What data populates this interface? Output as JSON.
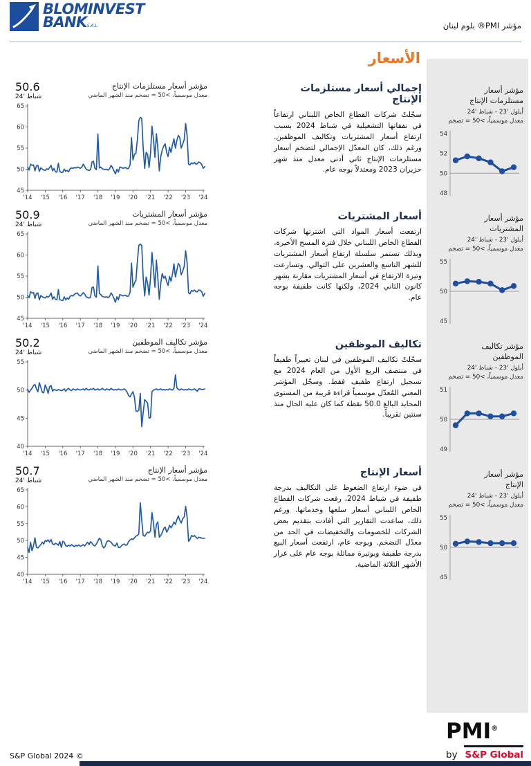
{
  "colors": {
    "accent_orange": "#E87722",
    "brand_blue": "#1C4E9D",
    "chart_line": "#215BA6",
    "spark_line": "#1F4E9C",
    "panel_bg": "#E9E9E9",
    "sp_red": "#E00A2B",
    "footer_bar": "#1B2A4A"
  },
  "header": {
    "brand": {
      "line1": "BLOMINVEST",
      "line2": "BANK",
      "suffix": "S.A.L"
    },
    "report_title": "مؤشر PMI® بلوم لبنان",
    "section_title": "الأسعار"
  },
  "footer": {
    "left": "S&P Global 2024 ©",
    "pmi": "PMI",
    "pmi_reg": "®",
    "by": "by",
    "sp_global": "S&P Global"
  },
  "sections": [
    {
      "heading": "إجمالي أسعار مستلزمات الإنتاج",
      "body": "سجّلتْ شركات القطاع الخاص اللبناني ارتفاعاً في نفقاتها التشغيلية في شباط 2024 بسبب ارتفاع أسعار المشتريات وتكاليف الموظفين. ورغم ذلك، كان المعدّل الإجمالي لتضخم أسعار مستلزمات الإنتاج ثاني أدنى معدل منذ شهر حزيران 2023 ومعتدلاً بوجه عام.",
      "chart": {
        "title": "مؤشر أسعار مستلزمات الإنتاج",
        "subtitle": "معدل موسمياً، >50 = تضخم منذ الشهر الماضي",
        "value": "50.6",
        "value_label": "شباط '24"
      },
      "panel": {
        "title": "مؤشر أسعار\nمستلزمات الإنتاج",
        "range": "أيلول '23 - شباط '24",
        "note": "معدل موسمياً، >50 = تضخم"
      }
    },
    {
      "heading": "أسعار المشتريات",
      "body": "ارتفعت أسعار المواد التي اشترتها شركات القطاع الخاص اللبناني خلال فترة المسح الأخيرة، وبذلك تستمر سلسلة ارتفاع أسعار المشتريات للشهر التاسع والعشرين على التوالي. وتسارعت وتيرة الارتفاع في أسعار المشتريات مقارنة بشهر كانون الثاني 2024، ولكنها كانت طفيفة بوجه عام.",
      "chart": {
        "title": "مؤشر أسعار المشتريات",
        "subtitle": "معدل موسمياً، >50 = تضخم منذ الشهر الماضي",
        "value": "50.9",
        "value_label": "شباط '24"
      },
      "panel": {
        "title": "مؤشر أسعار\nالمشتريات",
        "range": "أيلول '23 - شباط '24",
        "note": "معدل موسمياً، >50 = تضخم"
      }
    },
    {
      "heading": "تكاليف الموظفين",
      "body": "سجّلتْ تكاليف الموظفين في لبنان تغييراً طفيفاً في منتصف الربع الأول من العام 2024 مع تسجيل ارتفاع طفيف فقط. وسجّل المؤشر المعني المُعدّل موسمياً قراءة قريبة من المستوى المحايد البالغ 50.0 نقطة كما كان عليه الحال منذ سنتين تقريباً.",
      "chart": {
        "title": "مؤشر تكاليف الموظفين",
        "subtitle": "معدل موسمياً، >50 = تضخم منذ الشهر الماضي",
        "value": "50.2",
        "value_label": "شباط '24"
      },
      "panel": {
        "title": "مؤشر تكاليف\nالموظفين",
        "range": "أيلول '23 - شباط '24",
        "note": "معدل موسمياً، >50 = تضخم"
      }
    },
    {
      "heading": "أسعار الإنتاج",
      "body": "في ضوء ارتفاع الضغوط على التكاليف بدرجة طفيفة في شباط 2024، رفعت شركات القطاع الخاص اللبناني أسعار سلعها وخدماتها. ورغم ذلك، ساعدت التقارير التي أفادت بتقديم بعض الشركات للخصومات والتخفيضات في الحد من معدّل التضخم. وبوجه عام، ارتفعت أسعار البيع بدرجة طفيفة وبوتيرة مماثلة بوجه عام على غرار الأشهر الثلاثة الماضية.",
      "chart": {
        "title": "مؤشر أسعار الإنتاج",
        "subtitle": "معدل موسمياً، >50 = تضخم منذ الشهر الماضي",
        "value": "50.7",
        "value_label": "شباط '24"
      },
      "panel": {
        "title": "مؤشر أسعار\nالإنتاج",
        "range": "أيلول '23 - شباط '24",
        "note": "معدل موسمياً، >50 = تضخم"
      }
    }
  ],
  "chart_data": [
    {
      "id": "input-prices-history",
      "type": "line",
      "title": "مؤشر أسعار مستلزمات الإنتاج",
      "subtitle": "معدل موسمياً، >50 = تضخم منذ الشهر الماضي",
      "latest_value": 50.6,
      "latest_label": "شباط '24",
      "x_tick_labels": [
        "'14",
        "'15",
        "'16",
        "'17",
        "'18",
        "'19",
        "'20",
        "'21",
        "'22",
        "'23",
        "'24"
      ],
      "ylim": [
        45,
        65
      ],
      "yticks": [
        45,
        50,
        55,
        60,
        65
      ],
      "values": [
        50.5,
        49.8,
        51.2,
        50.9,
        51.0,
        49.6,
        50.8,
        50.9,
        49.5,
        50.3,
        50.0,
        49.8,
        49.7,
        50.1,
        49.9,
        50.4,
        50.9,
        49.6,
        50.2,
        49.4,
        49.3,
        51.4,
        49.5,
        49.2,
        49.3,
        50.0,
        49.5,
        49.7,
        49.4,
        50.1,
        50.3,
        50.2,
        50.4,
        50.3,
        50.5,
        50.4,
        50.2,
        50.5,
        51.2,
        50.6,
        50.0,
        49.8,
        49.7,
        49.9,
        51.7,
        51.9,
        50.2,
        49.9,
        58.3,
        50.3,
        50.5,
        50.1,
        50.0,
        49.9,
        50.0,
        49.8,
        50.1,
        50.9,
        50.4,
        49.6,
        48.9,
        50.0,
        49.3,
        50.5,
        50.4,
        50.2,
        50.3,
        50.4,
        50.1,
        50.2,
        51.0,
        57.5,
        52.2,
        53.5,
        53.8,
        57.0,
        61.5,
        62.3,
        62.0,
        55.0,
        50.2,
        54.0,
        53.5,
        50.4,
        53.8,
        60.2,
        57.0,
        52.8,
        58.4,
        55.0,
        49.6,
        53.0,
        54.5,
        55.5,
        56.0,
        54.0,
        53.0,
        55.2,
        54.0,
        55.8,
        57.2,
        55.0,
        56.8,
        58.0,
        57.5,
        55.0,
        56.0,
        57.0,
        60.8,
        58.0,
        51.2,
        51.0,
        51.5,
        51.3,
        51.6,
        51.2,
        51.3,
        51.7,
        51.5,
        51.1,
        50.2,
        50.6
      ]
    },
    {
      "id": "purchase-prices-history",
      "type": "line",
      "title": "مؤشر أسعار المشتريات",
      "subtitle": "معدل موسمياً، >50 = تضخم منذ الشهر الماضي",
      "latest_value": 50.9,
      "latest_label": "شباط '24",
      "x_tick_labels": [
        "'14",
        "'15",
        "'16",
        "'17",
        "'18",
        "'19",
        "'20",
        "'21",
        "'22",
        "'23",
        "'24"
      ],
      "ylim": [
        45,
        65
      ],
      "yticks": [
        45,
        50,
        55,
        60,
        65
      ],
      "values": [
        50.4,
        49.9,
        51.3,
        51.0,
        51.1,
        49.7,
        50.9,
        51.0,
        49.4,
        50.4,
        50.1,
        49.9,
        49.8,
        50.2,
        50.0,
        50.3,
        51.0,
        49.5,
        50.1,
        49.5,
        49.4,
        51.8,
        49.4,
        49.3,
        49.2,
        50.1,
        49.4,
        49.8,
        49.5,
        50.2,
        50.4,
        50.3,
        50.7,
        50.9,
        51.0,
        50.5,
        50.3,
        50.6,
        51.1,
        50.7,
        50.1,
        49.9,
        49.8,
        50.0,
        52.3,
        52.4,
        50.3,
        50.0,
        57.4,
        50.9,
        50.6,
        50.2,
        50.1,
        50.0,
        50.1,
        49.9,
        50.2,
        51.0,
        50.5,
        49.7,
        48.8,
        50.1,
        49.4,
        50.6,
        50.5,
        50.3,
        50.4,
        50.5,
        50.2,
        50.3,
        51.1,
        58.1,
        52.4,
        53.3,
        54.0,
        58.5,
        62.3,
        62.6,
        62.2,
        54.5,
        50.3,
        54.8,
        53.3,
        50.5,
        54.6,
        60.6,
        56.5,
        52.4,
        58.8,
        54.5,
        49.5,
        53.3,
        55.6,
        54.5,
        55.0,
        53.7,
        52.8,
        54.9,
        53.8,
        55.5,
        57.9,
        54.8,
        56.4,
        58.0,
        57.5,
        55.3,
        56.2,
        57.3,
        61.0,
        58.2,
        51.0,
        50.8,
        51.6,
        51.4,
        51.7,
        51.3,
        51.3,
        51.7,
        51.6,
        51.3,
        50.2,
        50.9
      ]
    },
    {
      "id": "staff-costs-history",
      "type": "line",
      "title": "مؤشر تكاليف الموظفين",
      "subtitle": "معدل موسمياً، >50 = تضخم منذ الشهر الماضي",
      "latest_value": 50.2,
      "latest_label": "شباط '24",
      "x_tick_labels": [
        "'14",
        "'15",
        "'16",
        "'17",
        "'18",
        "'19",
        "'20",
        "'21",
        "'22",
        "'23",
        "'24"
      ],
      "ylim": [
        40,
        55
      ],
      "yticks": [
        40,
        45,
        50,
        55
      ],
      "values": [
        50.1,
        49.6,
        50.0,
        50.3,
        50.8,
        51.0,
        50.2,
        49.7,
        51.3,
        50.5,
        49.6,
        49.5,
        50.9,
        50.3,
        49.4,
        50.6,
        50.8,
        49.8,
        50.1,
        50.0,
        49.9,
        50.1,
        50.0,
        49.9,
        50.0,
        50.2,
        49.8,
        50.1,
        50.3,
        50.0,
        49.9,
        50.2,
        50.1,
        50.0,
        50.2,
        50.1,
        50.0,
        50.1,
        50.2,
        50.0,
        50.3,
        50.1,
        50.0,
        50.2,
        50.1,
        50.3,
        50.0,
        50.1,
        50.2,
        50.0,
        50.1,
        50.3,
        50.1,
        50.0,
        50.2,
        50.1,
        50.0,
        50.3,
        50.1,
        50.0,
        50.1,
        50.0,
        50.2,
        50.1,
        50.0,
        50.1,
        50.2,
        50.0,
        49.6,
        49.0,
        48.8,
        49.3,
        49.7,
        48.8,
        46.3,
        46.2,
        46.4,
        49.4,
        43.5,
        46.0,
        48.3,
        48.0,
        47.7,
        45.0,
        45.1,
        49.7,
        50.0,
        50.1,
        50.2,
        50.0,
        50.1,
        50.2,
        50.0,
        50.1,
        50.0,
        50.1,
        50.0,
        50.2,
        50.1,
        50.0,
        50.3,
        52.7,
        50.4,
        50.1,
        50.0,
        50.2,
        50.1,
        50.0,
        50.1,
        50.0,
        50.2,
        50.1,
        50.0,
        50.1,
        50.2,
        50.0,
        49.8,
        50.2,
        50.2,
        50.1,
        50.1,
        50.2
      ]
    },
    {
      "id": "output-prices-history",
      "type": "line",
      "title": "مؤشر أسعار الإنتاج",
      "subtitle": "معدل موسمياً، >50 = تضخم منذ الشهر الماضي",
      "latest_value": 50.7,
      "latest_label": "شباط '24",
      "x_tick_labels": [
        "'14",
        "'15",
        "'16",
        "'17",
        "'18",
        "'19",
        "'20",
        "'21",
        "'22",
        "'23",
        "'24"
      ],
      "ylim": [
        40,
        65
      ],
      "yticks": [
        40,
        45,
        50,
        55,
        60,
        65
      ],
      "values": [
        48.0,
        46.5,
        49.5,
        47.0,
        48.5,
        50.8,
        48.0,
        47.8,
        48.3,
        48.8,
        49.5,
        49.0,
        50.0,
        49.8,
        50.2,
        49.5,
        50.3,
        49.0,
        48.8,
        49.2,
        49.0,
        48.6,
        49.7,
        48.0,
        49.8,
        49.5,
        48.5,
        48.3,
        48.6,
        48.4,
        48.8,
        48.5,
        48.2,
        48.6,
        48.4,
        48.7,
        48.3,
        48.5,
        48.8,
        48.4,
        49.0,
        49.5,
        48.8,
        49.7,
        49.2,
        48.6,
        48.4,
        49.0,
        49.9,
        50.7,
        50.2,
        48.5,
        47.8,
        48.3,
        49.6,
        50.0,
        49.8,
        49.5,
        48.9,
        48.5,
        48.4,
        49.3,
        48.0,
        47.9,
        48.4,
        48.8,
        49.0,
        48.6,
        48.8,
        49.7,
        50.2,
        50.5,
        50.3,
        50.8,
        51.3,
        51.5,
        52.0,
        61.2,
        56.0,
        51.5,
        51.3,
        52.0,
        52.5,
        52.3,
        52.8,
        58.3,
        55.0,
        51.0,
        54.8,
        55.5,
        51.0,
        51.5,
        52.3,
        53.5,
        54.0,
        52.5,
        53.2,
        54.5,
        53.8,
        54.5,
        55.5,
        54.8,
        56.2,
        57.3,
        56.0,
        55.2,
        56.5,
        57.0,
        60.1,
        57.0,
        49.8,
        50.3,
        51.5,
        51.2,
        51.5,
        51.0,
        50.6,
        51.0,
        50.9,
        50.7,
        50.7,
        50.7
      ]
    },
    {
      "id": "input-prices-recent",
      "type": "line",
      "title": "مؤشر أسعار مستلزمات الإنتاج",
      "period": "أيلول '23 - شباط '24",
      "note": "معدل موسمياً، >50 = تضخم",
      "ylim": [
        48,
        54
      ],
      "yticks": [
        48,
        50,
        52,
        54
      ],
      "refline": 50,
      "values": [
        51.3,
        51.7,
        51.5,
        51.1,
        50.2,
        50.6
      ]
    },
    {
      "id": "purchase-prices-recent",
      "type": "line",
      "title": "مؤشر أسعار المشتريات",
      "period": "أيلول '23 - شباط '24",
      "note": "معدل موسمياً، >50 = تضخم",
      "ylim": [
        45,
        55
      ],
      "yticks": [
        45,
        50,
        55
      ],
      "refline": 50,
      "values": [
        51.3,
        51.7,
        51.6,
        51.3,
        50.2,
        50.9
      ]
    },
    {
      "id": "staff-costs-recent",
      "type": "line",
      "title": "مؤشر تكاليف الموظفين",
      "period": "أيلول '23 - شباط '24",
      "note": "معدل موسمياً، >50 = تضخم",
      "ylim": [
        49,
        51
      ],
      "yticks": [
        49,
        50,
        51
      ],
      "refline": 50,
      "values": [
        49.8,
        50.2,
        50.2,
        50.1,
        50.1,
        50.2
      ]
    },
    {
      "id": "output-prices-recent",
      "type": "line",
      "title": "مؤشر أسعار الإنتاج",
      "period": "أيلول '23 - شباط '24",
      "note": "معدل موسمياً، >50 = تضخم",
      "ylim": [
        45,
        55
      ],
      "yticks": [
        45,
        50,
        55
      ],
      "refline": 50,
      "values": [
        50.6,
        51.0,
        50.9,
        50.7,
        50.7,
        50.7
      ]
    }
  ]
}
